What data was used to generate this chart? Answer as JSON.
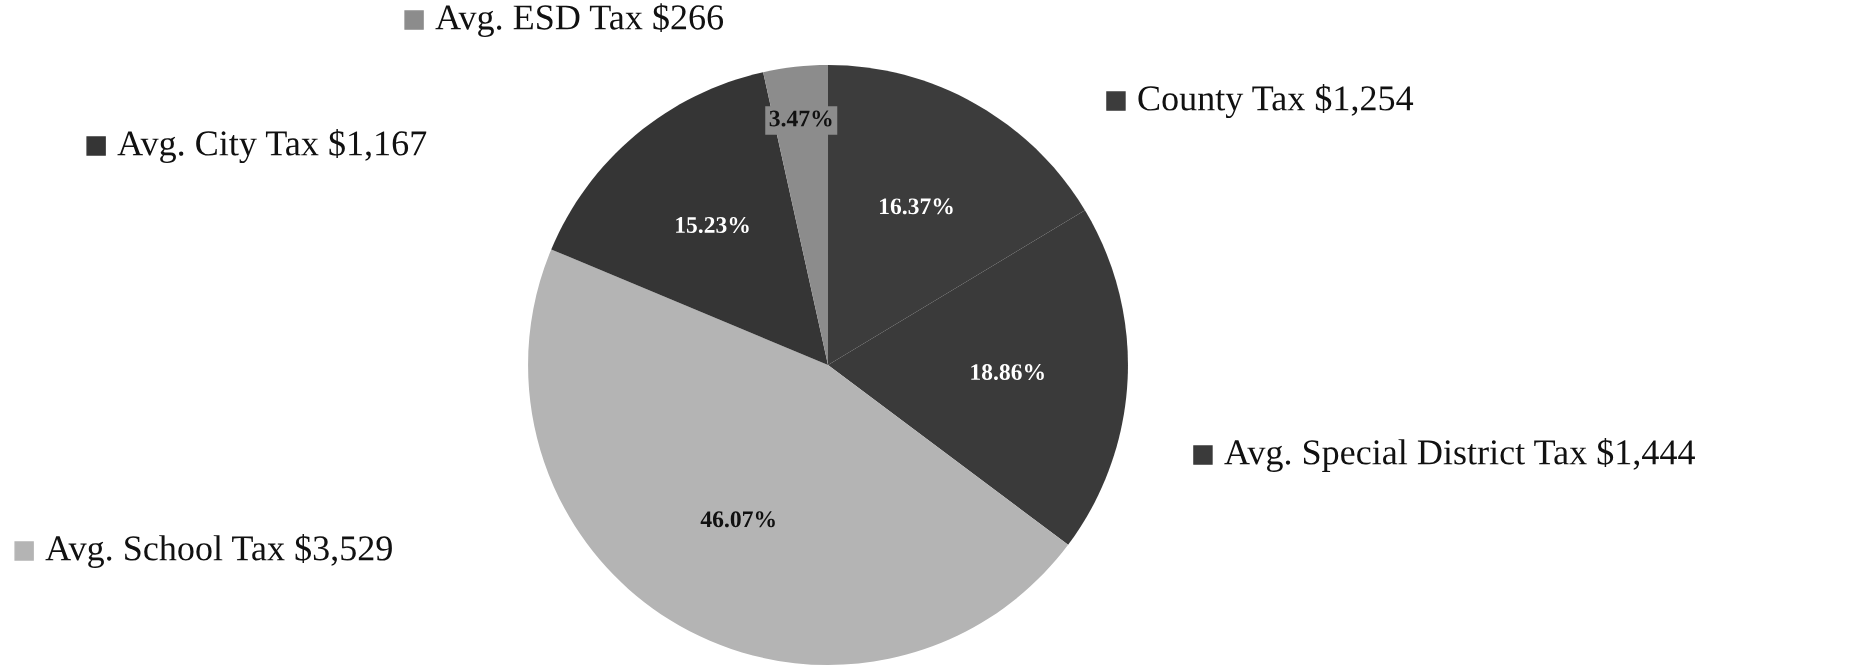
{
  "chart_data": {
    "type": "pie",
    "categories": [
      "County Tax $1,254",
      "Avg. Special District Tax $1,444",
      "Avg. School Tax $3,529",
      "Avg. City Tax $1,167",
      "Avg. ESD Tax $266"
    ],
    "values": [
      16.37,
      18.86,
      46.07,
      15.23,
      3.47
    ],
    "colors": [
      "#3c3c3c",
      "#3a3a3a",
      "#b4b4b4",
      "#353535",
      "#8c8c8c"
    ],
    "value_labels": [
      "16.37%",
      "18.86%",
      "46.07%",
      "15.23%",
      "3.47%"
    ],
    "legend": "right"
  }
}
